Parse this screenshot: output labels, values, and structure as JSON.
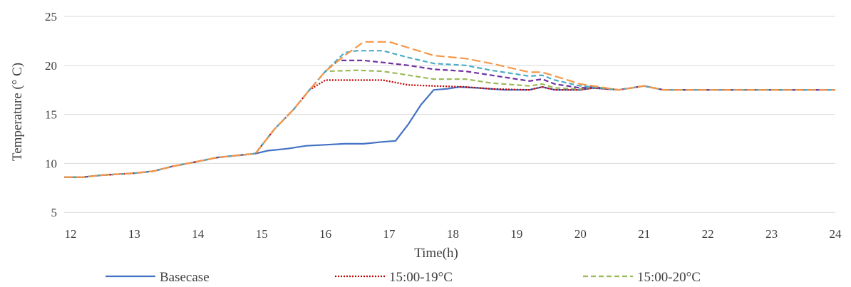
{
  "chart_data": {
    "type": "line",
    "title": "",
    "xlabel": "Time(h)",
    "ylabel": "Temperature (° C)",
    "xlim": [
      11.9,
      24
    ],
    "ylim": [
      4,
      25
    ],
    "x_ticks": [
      12,
      13,
      14,
      15,
      16,
      17,
      18,
      19,
      20,
      21,
      22,
      23,
      24
    ],
    "y_ticks": [
      5,
      10,
      15,
      20,
      25
    ],
    "grid": "horizontal",
    "legend_position": "bottom",
    "series": [
      {
        "name": "Basecase",
        "color": "#4472C4",
        "style": "solid",
        "points": [
          [
            11.9,
            8.6
          ],
          [
            12.2,
            8.6
          ],
          [
            12.5,
            8.8
          ],
          [
            13,
            9.0
          ],
          [
            13.3,
            9.2
          ],
          [
            13.6,
            9.7
          ],
          [
            14,
            10.2
          ],
          [
            14.3,
            10.6
          ],
          [
            14.6,
            10.8
          ],
          [
            14.9,
            11.0
          ],
          [
            15.1,
            11.3
          ],
          [
            15.4,
            11.5
          ],
          [
            15.7,
            11.8
          ],
          [
            16,
            11.9
          ],
          [
            16.3,
            12.0
          ],
          [
            16.6,
            12.0
          ],
          [
            16.9,
            12.2
          ],
          [
            17.1,
            12.3
          ],
          [
            17.3,
            14.0
          ],
          [
            17.5,
            16.0
          ],
          [
            17.7,
            17.5
          ],
          [
            17.9,
            17.6
          ],
          [
            18.1,
            17.8
          ],
          [
            18.4,
            17.7
          ],
          [
            18.8,
            17.5
          ],
          [
            19.2,
            17.5
          ],
          [
            19.4,
            17.8
          ],
          [
            19.6,
            17.5
          ],
          [
            20,
            17.5
          ],
          [
            20.2,
            17.7
          ],
          [
            20.6,
            17.5
          ],
          [
            21,
            17.9
          ],
          [
            21.3,
            17.5
          ],
          [
            24,
            17.5
          ]
        ]
      },
      {
        "name": "15:00-19°C",
        "color": "#C00000",
        "style": "dotted",
        "points": [
          [
            11.9,
            8.6
          ],
          [
            12.2,
            8.6
          ],
          [
            12.5,
            8.8
          ],
          [
            13,
            9.0
          ],
          [
            13.3,
            9.2
          ],
          [
            13.6,
            9.7
          ],
          [
            14,
            10.2
          ],
          [
            14.3,
            10.6
          ],
          [
            14.6,
            10.8
          ],
          [
            14.9,
            11.0
          ],
          [
            15.2,
            13.5
          ],
          [
            15.5,
            15.5
          ],
          [
            15.75,
            17.5
          ],
          [
            16,
            18.5
          ],
          [
            16.5,
            18.5
          ],
          [
            16.9,
            18.5
          ],
          [
            17.3,
            18.0
          ],
          [
            17.7,
            17.9
          ],
          [
            18.2,
            17.8
          ],
          [
            18.6,
            17.6
          ],
          [
            19.2,
            17.5
          ],
          [
            19.4,
            17.8
          ],
          [
            19.6,
            17.5
          ],
          [
            20,
            17.5
          ],
          [
            20.2,
            17.7
          ],
          [
            20.6,
            17.5
          ],
          [
            21,
            17.9
          ],
          [
            21.3,
            17.5
          ],
          [
            24,
            17.5
          ]
        ]
      },
      {
        "name": "15:00-20°C",
        "color": "#9BBB59",
        "style": "dashed",
        "points": [
          [
            11.9,
            8.6
          ],
          [
            12.2,
            8.6
          ],
          [
            12.5,
            8.8
          ],
          [
            13,
            9.0
          ],
          [
            13.3,
            9.2
          ],
          [
            13.6,
            9.7
          ],
          [
            14,
            10.2
          ],
          [
            14.3,
            10.6
          ],
          [
            14.6,
            10.8
          ],
          [
            14.9,
            11.0
          ],
          [
            15.2,
            13.5
          ],
          [
            15.5,
            15.5
          ],
          [
            15.75,
            17.5
          ],
          [
            16,
            19.4
          ],
          [
            16.5,
            19.5
          ],
          [
            16.9,
            19.4
          ],
          [
            17.3,
            19.0
          ],
          [
            17.7,
            18.6
          ],
          [
            18.2,
            18.6
          ],
          [
            18.6,
            18.2
          ],
          [
            19.2,
            17.9
          ],
          [
            19.4,
            18.1
          ],
          [
            19.6,
            17.7
          ],
          [
            20,
            17.6
          ],
          [
            20.2,
            17.8
          ],
          [
            20.6,
            17.5
          ],
          [
            21,
            17.9
          ],
          [
            21.3,
            17.5
          ],
          [
            24,
            17.5
          ]
        ]
      },
      {
        "name": "",
        "color": "#7030A0",
        "style": "dashed",
        "points": [
          [
            11.9,
            8.6
          ],
          [
            12.2,
            8.6
          ],
          [
            12.5,
            8.8
          ],
          [
            13,
            9.0
          ],
          [
            13.3,
            9.2
          ],
          [
            13.6,
            9.7
          ],
          [
            14,
            10.2
          ],
          [
            14.3,
            10.6
          ],
          [
            14.6,
            10.8
          ],
          [
            14.9,
            11.0
          ],
          [
            15.2,
            13.5
          ],
          [
            15.5,
            15.5
          ],
          [
            15.75,
            17.5
          ],
          [
            16,
            19.4
          ],
          [
            16.2,
            20.5
          ],
          [
            16.6,
            20.5
          ],
          [
            16.9,
            20.3
          ],
          [
            17.3,
            20.0
          ],
          [
            17.7,
            19.6
          ],
          [
            18.2,
            19.4
          ],
          [
            18.6,
            19.0
          ],
          [
            19.2,
            18.4
          ],
          [
            19.4,
            18.6
          ],
          [
            19.6,
            18.1
          ],
          [
            20,
            17.7
          ],
          [
            20.2,
            17.8
          ],
          [
            20.6,
            17.5
          ],
          [
            21,
            17.9
          ],
          [
            21.3,
            17.5
          ],
          [
            24,
            17.5
          ]
        ]
      },
      {
        "name": "",
        "color": "#4BACC6",
        "style": "dashed",
        "points": [
          [
            11.9,
            8.6
          ],
          [
            12.2,
            8.6
          ],
          [
            12.5,
            8.8
          ],
          [
            13,
            9.0
          ],
          [
            13.3,
            9.2
          ],
          [
            13.6,
            9.7
          ],
          [
            14,
            10.2
          ],
          [
            14.3,
            10.6
          ],
          [
            14.6,
            10.8
          ],
          [
            14.9,
            11.0
          ],
          [
            15.2,
            13.5
          ],
          [
            15.5,
            15.5
          ],
          [
            15.75,
            17.5
          ],
          [
            16,
            19.4
          ],
          [
            16.3,
            21.3
          ],
          [
            16.5,
            21.5
          ],
          [
            16.9,
            21.5
          ],
          [
            17.3,
            20.8
          ],
          [
            17.7,
            20.2
          ],
          [
            18.2,
            20.0
          ],
          [
            18.6,
            19.5
          ],
          [
            19.2,
            18.9
          ],
          [
            19.4,
            19.0
          ],
          [
            19.6,
            18.5
          ],
          [
            20,
            17.9
          ],
          [
            20.2,
            17.8
          ],
          [
            20.6,
            17.5
          ],
          [
            21,
            17.9
          ],
          [
            21.3,
            17.5
          ],
          [
            24,
            17.5
          ]
        ]
      },
      {
        "name": "",
        "color": "#F79646",
        "style": "longdash",
        "points": [
          [
            11.9,
            8.6
          ],
          [
            12.2,
            8.6
          ],
          [
            12.5,
            8.8
          ],
          [
            13,
            9.0
          ],
          [
            13.3,
            9.2
          ],
          [
            13.6,
            9.7
          ],
          [
            14,
            10.2
          ],
          [
            14.3,
            10.6
          ],
          [
            14.6,
            10.8
          ],
          [
            14.9,
            11.0
          ],
          [
            15.2,
            13.5
          ],
          [
            15.5,
            15.5
          ],
          [
            15.75,
            17.5
          ],
          [
            16,
            19.4
          ],
          [
            16.3,
            21.0
          ],
          [
            16.6,
            22.4
          ],
          [
            17,
            22.4
          ],
          [
            17.3,
            21.8
          ],
          [
            17.7,
            21.0
          ],
          [
            18.2,
            20.7
          ],
          [
            18.6,
            20.2
          ],
          [
            19.2,
            19.3
          ],
          [
            19.4,
            19.3
          ],
          [
            19.6,
            18.9
          ],
          [
            20,
            18.1
          ],
          [
            20.2,
            17.9
          ],
          [
            20.6,
            17.5
          ],
          [
            21,
            17.9
          ],
          [
            21.3,
            17.5
          ],
          [
            24,
            17.5
          ]
        ]
      }
    ]
  }
}
